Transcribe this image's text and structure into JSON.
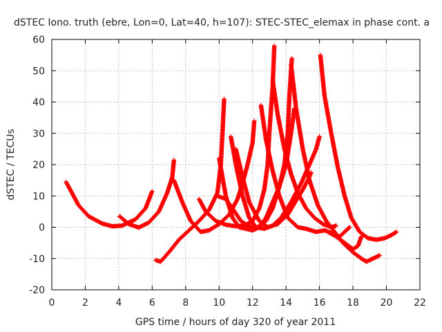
{
  "chart_data": {
    "type": "scatter",
    "title": "dSTEC Iono. truth (ebre, Lon=0, Lat=40, h=107): STEC-STEC_elemax in phase cont. a",
    "xlabel": "GPS time / hours of day 320 of year 2011",
    "ylabel": "dSTEC  / TECUs",
    "xlim": [
      0,
      22
    ],
    "ylim": [
      -20,
      60
    ],
    "xticks": [
      0,
      2,
      4,
      6,
      8,
      10,
      12,
      14,
      16,
      18,
      20,
      22
    ],
    "yticks": [
      -20,
      -10,
      0,
      10,
      20,
      30,
      40,
      50,
      60
    ],
    "grid": true,
    "marker": "+",
    "color": "#ff0000",
    "series": [
      {
        "points": [
          [
            0.85,
            14.5
          ],
          [
            1.2,
            11
          ],
          [
            1.6,
            7
          ],
          [
            2.2,
            3.5
          ],
          [
            3.0,
            1.2
          ],
          [
            3.6,
            0.3
          ],
          [
            4.2,
            0.5
          ],
          [
            5.0,
            2.5
          ],
          [
            5.6,
            6
          ],
          [
            6.0,
            11.5
          ]
        ]
      },
      {
        "points": [
          [
            4.05,
            3.5
          ],
          [
            4.6,
            1
          ],
          [
            5.2,
            -0.1
          ],
          [
            5.8,
            1.5
          ],
          [
            6.4,
            5
          ],
          [
            6.9,
            11
          ],
          [
            7.2,
            16
          ],
          [
            7.3,
            21.5
          ]
        ]
      },
      {
        "points": [
          [
            6.2,
            -10.5
          ],
          [
            6.5,
            -11
          ],
          [
            7.0,
            -8
          ],
          [
            7.6,
            -4
          ],
          [
            8.2,
            -1
          ],
          [
            8.8,
            2
          ],
          [
            9.4,
            5.5
          ],
          [
            9.9,
            11
          ],
          [
            10.1,
            20
          ],
          [
            10.2,
            30
          ],
          [
            10.3,
            41
          ]
        ]
      },
      {
        "points": [
          [
            7.3,
            15
          ],
          [
            7.8,
            8
          ],
          [
            8.3,
            2
          ],
          [
            8.9,
            -1.5
          ],
          [
            9.4,
            -1
          ],
          [
            10.0,
            1
          ],
          [
            10.6,
            4
          ],
          [
            11.1,
            9
          ],
          [
            11.4,
            14
          ],
          [
            11.7,
            20
          ],
          [
            12.0,
            27
          ],
          [
            12.1,
            34
          ]
        ]
      },
      {
        "points": [
          [
            8.8,
            9
          ],
          [
            9.2,
            5
          ],
          [
            9.8,
            2
          ],
          [
            10.4,
            0.8
          ],
          [
            11.0,
            0.3
          ],
          [
            11.5,
            0.5
          ],
          [
            12.0,
            2
          ],
          [
            12.4,
            6
          ],
          [
            12.7,
            12
          ],
          [
            12.9,
            20
          ],
          [
            13.0,
            30
          ],
          [
            13.2,
            45
          ],
          [
            13.3,
            58
          ]
        ]
      },
      {
        "points": [
          [
            9.9,
            10
          ],
          [
            10.4,
            9
          ],
          [
            10.8,
            6
          ],
          [
            11.3,
            2
          ],
          [
            11.8,
            0.2
          ],
          [
            12.3,
            0
          ],
          [
            12.8,
            2
          ],
          [
            13.2,
            6
          ],
          [
            13.6,
            13
          ],
          [
            13.9,
            20
          ],
          [
            14.1,
            30
          ],
          [
            14.2,
            42
          ],
          [
            14.35,
            54
          ]
        ]
      },
      {
        "points": [
          [
            10.0,
            22
          ],
          [
            10.4,
            10
          ],
          [
            10.8,
            3
          ],
          [
            11.2,
            0
          ],
          [
            11.6,
            -0.5
          ],
          [
            12.0,
            -1
          ],
          [
            12.4,
            0
          ],
          [
            12.8,
            3
          ],
          [
            13.2,
            8
          ],
          [
            13.6,
            13
          ],
          [
            14.0,
            20
          ],
          [
            14.3,
            30
          ],
          [
            14.5,
            38
          ]
        ]
      },
      {
        "points": [
          [
            10.7,
            29
          ],
          [
            11.0,
            20
          ],
          [
            11.4,
            10
          ],
          [
            11.8,
            3
          ],
          [
            12.2,
            0
          ],
          [
            12.7,
            -0.5
          ],
          [
            13.2,
            0.5
          ],
          [
            13.7,
            3
          ],
          [
            14.3,
            8
          ],
          [
            14.9,
            14
          ],
          [
            15.4,
            20
          ],
          [
            15.8,
            25
          ],
          [
            16.0,
            29
          ]
        ]
      },
      {
        "points": [
          [
            11.0,
            25
          ],
          [
            11.4,
            16
          ],
          [
            11.8,
            8
          ],
          [
            12.4,
            2
          ],
          [
            12.9,
            0
          ],
          [
            13.5,
            1
          ],
          [
            14.1,
            4
          ],
          [
            14.6,
            8.5
          ],
          [
            15.0,
            12
          ],
          [
            15.3,
            15
          ],
          [
            15.5,
            17.5
          ]
        ]
      },
      {
        "points": [
          [
            12.5,
            39
          ],
          [
            12.8,
            28
          ],
          [
            13.2,
            18
          ],
          [
            13.6,
            10
          ],
          [
            14.1,
            3
          ],
          [
            14.7,
            0
          ],
          [
            15.2,
            -0.5
          ],
          [
            15.8,
            -1.5
          ],
          [
            16.3,
            -1
          ],
          [
            16.8,
            -2
          ],
          [
            17.2,
            -3
          ],
          [
            17.6,
            -1
          ],
          [
            17.8,
            0
          ]
        ]
      },
      {
        "points": [
          [
            13.2,
            47
          ],
          [
            13.5,
            36
          ],
          [
            13.9,
            25
          ],
          [
            14.3,
            17
          ],
          [
            14.7,
            11
          ],
          [
            15.2,
            6
          ],
          [
            15.7,
            3
          ],
          [
            16.2,
            1
          ],
          [
            16.7,
            0
          ],
          [
            17.0,
            0.5
          ]
        ]
      },
      {
        "points": [
          [
            14.3,
            52
          ],
          [
            14.6,
            38
          ],
          [
            15.0,
            25
          ],
          [
            15.4,
            15
          ],
          [
            15.9,
            7
          ],
          [
            16.4,
            2
          ],
          [
            16.9,
            -1.5
          ],
          [
            17.4,
            -5
          ],
          [
            18.0,
            -8
          ],
          [
            18.5,
            -10
          ],
          [
            18.8,
            -11
          ],
          [
            19.2,
            -10
          ],
          [
            19.6,
            -9
          ]
        ]
      },
      {
        "points": [
          [
            16.05,
            55
          ],
          [
            16.3,
            42
          ],
          [
            16.7,
            30
          ],
          [
            17.1,
            19
          ],
          [
            17.5,
            10
          ],
          [
            17.9,
            3
          ],
          [
            18.4,
            -1.5
          ],
          [
            18.9,
            -3.5
          ],
          [
            19.4,
            -4
          ],
          [
            19.9,
            -3.5
          ],
          [
            20.3,
            -2.5
          ],
          [
            20.6,
            -1.5
          ]
        ]
      },
      {
        "points": [
          [
            16.5,
            -1.5
          ],
          [
            17.0,
            -3
          ],
          [
            17.5,
            -5
          ],
          [
            18.0,
            -7
          ],
          [
            18.3,
            -6
          ],
          [
            18.5,
            -3
          ]
        ]
      }
    ]
  }
}
